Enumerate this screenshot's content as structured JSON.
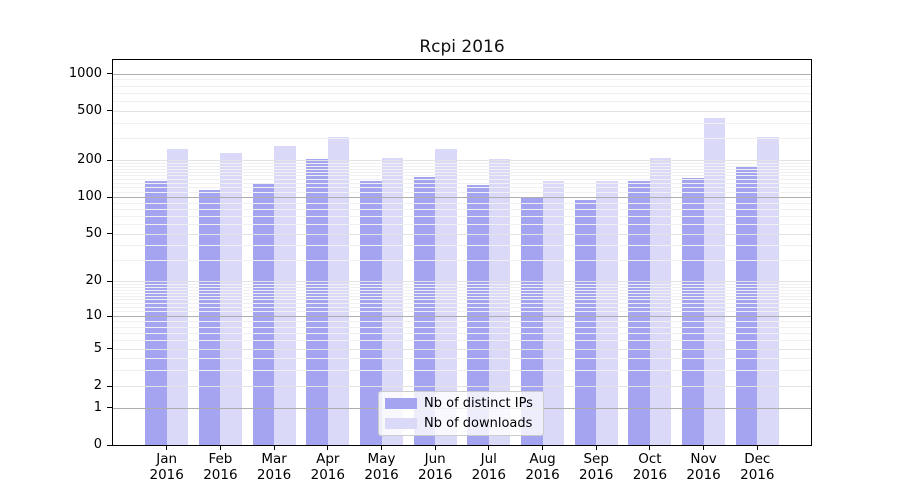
{
  "chart_data": {
    "type": "bar",
    "title": "Rcpi 2016",
    "categories": [
      "Jan",
      "Feb",
      "Mar",
      "Apr",
      "May",
      "Jun",
      "Jul",
      "Aug",
      "Sep",
      "Oct",
      "Nov",
      "Dec"
    ],
    "category_year": "2016",
    "series": [
      {
        "name": "Nb of distinct IPs",
        "color": "#a4a4f1",
        "values": [
          135,
          115,
          129,
          203,
          135,
          146,
          126,
          98,
          95,
          135,
          144,
          174
        ]
      },
      {
        "name": "Nb of downloads",
        "color": "#dadaf8",
        "values": [
          246,
          227,
          260,
          309,
          207,
          244,
          203,
          135,
          136,
          208,
          440,
          309
        ]
      }
    ],
    "yscale": "log1p",
    "yticks": [
      0,
      1,
      2,
      5,
      10,
      20,
      50,
      100,
      200,
      500,
      1000
    ],
    "ylim": [
      0,
      1290
    ],
    "grid": true,
    "legend_position": "lower center"
  },
  "colors": {
    "bar_distinct_ips": "#a4a4f1",
    "bar_downloads": "#dadaf8",
    "grid_major": "#aeaeae",
    "grid_light": "#e3e3e3",
    "grid_minor": "#f0f0f0",
    "spine": "#000000",
    "background": "#ffffff",
    "legend_border": "#cccccc"
  }
}
